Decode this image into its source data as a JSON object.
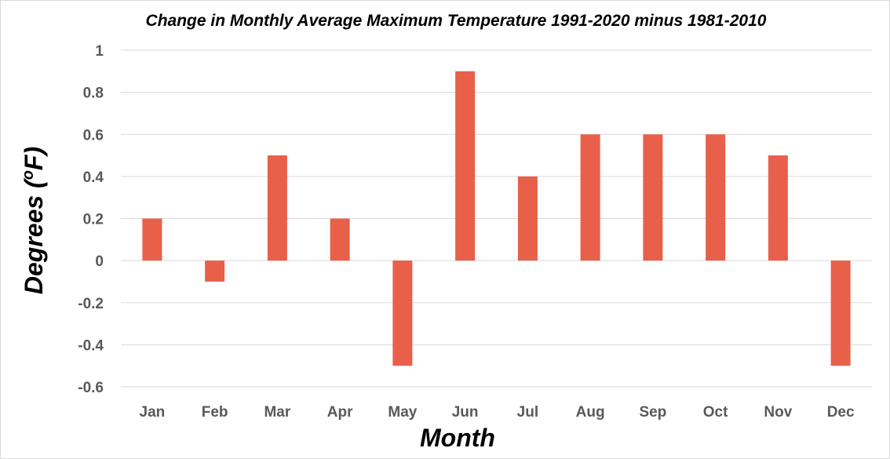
{
  "chart_data": {
    "type": "bar",
    "title": "Change in Monthly Average Maximum Temperature 1991-2020 minus 1981-2010",
    "xlabel": "Month",
    "ylabel_main": "Degrees (",
    "ylabel_superscript": "o",
    "ylabel_tail": "F)",
    "categories": [
      "Jan",
      "Feb",
      "Mar",
      "Apr",
      "May",
      "Jun",
      "Jul",
      "Aug",
      "Sep",
      "Oct",
      "Nov",
      "Dec"
    ],
    "values": [
      0.2,
      -0.1,
      0.5,
      0.2,
      -0.5,
      0.9,
      0.4,
      0.6,
      0.6,
      0.6,
      0.5,
      -0.5
    ],
    "ylim": [
      -0.6,
      1
    ],
    "yticks": [
      1,
      0.8,
      0.6,
      0.4,
      0.2,
      0,
      -0.2,
      -0.4,
      -0.6
    ],
    "ytick_labels": [
      "1",
      "0.8",
      "0.6",
      "0.4",
      "0.2",
      "0",
      "-0.2",
      "-0.4",
      "-0.6"
    ],
    "grid": true,
    "legend": "none",
    "bar_color": "#E8604A",
    "grid_color": "#D9D9D9",
    "tick_label_color": "#595959"
  }
}
